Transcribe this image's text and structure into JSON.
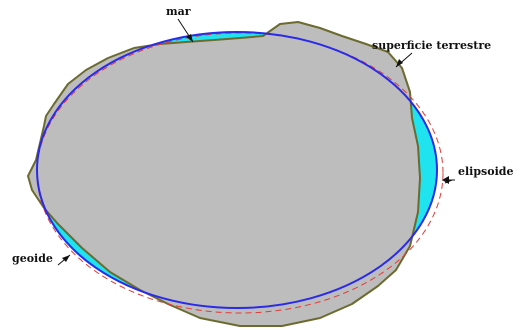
{
  "labels": {
    "mar": "mar",
    "superficie": "superficie terrestre",
    "elipsoide": "elipsoide",
    "geoide": "geoide"
  },
  "colors": {
    "land": "#bdbdbd",
    "land_outline": "#6b6b2f",
    "sea": "#1fe3ee",
    "geoid": "#2a2ae8",
    "ellipsoid": "#e23a3a",
    "arrow": "#111111"
  }
}
